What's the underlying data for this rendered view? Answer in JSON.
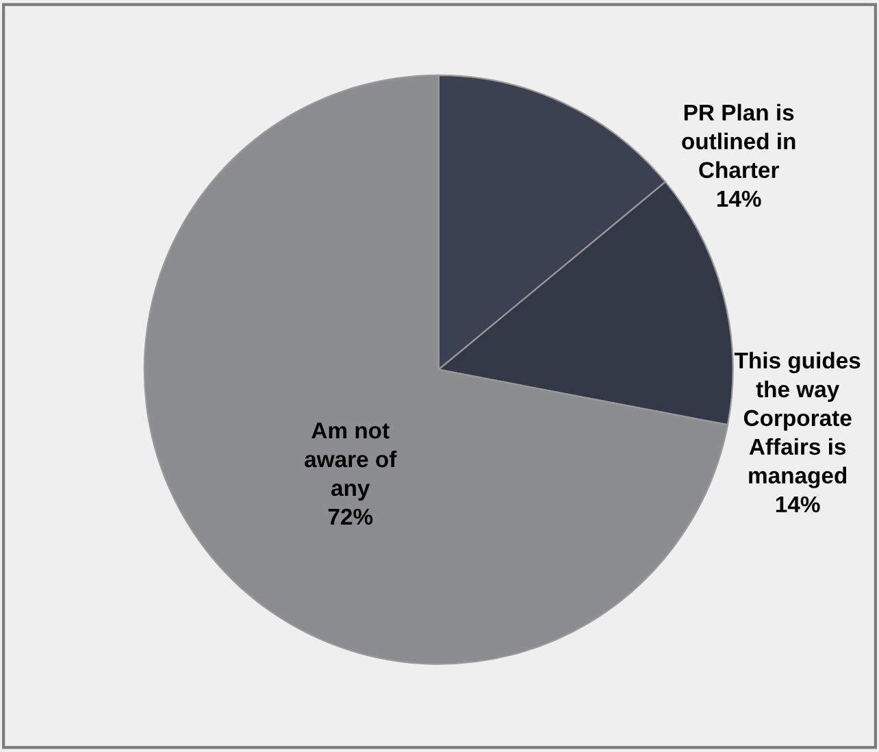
{
  "chart_data": {
    "type": "pie",
    "categories": [
      "PR Plan is outlined in Charter",
      "This guides the way Corporate Affairs is managed",
      "Am not aware of any"
    ],
    "values": [
      14,
      14,
      72
    ],
    "colors": [
      "#3b4150",
      "#323845",
      "#8c8d8f"
    ],
    "value_labels": [
      "14%",
      "14%",
      "72%"
    ]
  }
}
